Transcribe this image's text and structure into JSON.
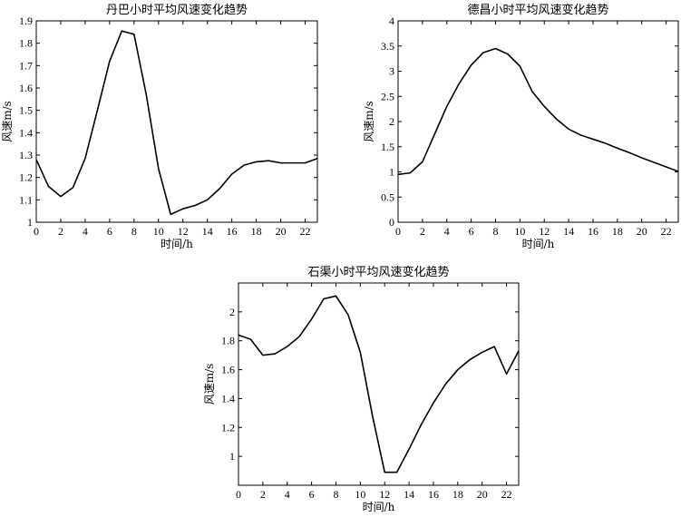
{
  "chart_data": [
    {
      "type": "line",
      "title": "丹巴小时平均风速变化趋势",
      "xlabel": "时间/h",
      "ylabel": "风速m/s",
      "xlim": [
        0,
        23
      ],
      "ylim": [
        1,
        1.9
      ],
      "xticks": [
        "0",
        "2",
        "4",
        "6",
        "8",
        "10",
        "12",
        "14",
        "16",
        "18",
        "20",
        "22"
      ],
      "yticks": [
        "1",
        "1.1",
        "1.2",
        "1.3",
        "1.4",
        "1.5",
        "1.6",
        "1.7",
        "1.8",
        "1.9"
      ],
      "x": [
        0,
        1,
        2,
        3,
        4,
        5,
        6,
        7,
        8,
        9,
        10,
        11,
        12,
        13,
        14,
        15,
        16,
        17,
        18,
        19,
        20,
        21,
        22,
        23
      ],
      "series": [
        {
          "values": [
            1.28,
            1.16,
            1.115,
            1.155,
            1.285,
            1.5,
            1.72,
            1.855,
            1.84,
            1.57,
            1.24,
            1.035,
            1.06,
            1.075,
            1.1,
            1.15,
            1.215,
            1.255,
            1.27,
            1.275,
            1.265,
            1.265,
            1.265,
            1.285
          ]
        }
      ],
      "grid": false
    },
    {
      "type": "line",
      "title": "德昌小时平均风速变化趋势",
      "xlabel": "时间/h",
      "ylabel": "风速m/s",
      "xlim": [
        0,
        23
      ],
      "ylim": [
        0,
        4
      ],
      "xticks": [
        "0",
        "2",
        "4",
        "6",
        "8",
        "10",
        "12",
        "14",
        "16",
        "18",
        "20",
        "22"
      ],
      "yticks": [
        "0",
        "0.5",
        "1",
        "1.5",
        "2",
        "2.5",
        "3",
        "3.5",
        "4"
      ],
      "x": [
        0,
        1,
        2,
        3,
        4,
        5,
        6,
        7,
        8,
        9,
        10,
        11,
        12,
        13,
        14,
        15,
        16,
        17,
        18,
        19,
        20,
        21,
        22,
        23
      ],
      "series": [
        {
          "values": [
            0.95,
            0.98,
            1.2,
            1.75,
            2.3,
            2.75,
            3.12,
            3.37,
            3.45,
            3.34,
            3.1,
            2.6,
            2.3,
            2.05,
            1.85,
            1.73,
            1.65,
            1.57,
            1.47,
            1.38,
            1.28,
            1.19,
            1.1,
            1.01
          ]
        }
      ],
      "grid": false
    },
    {
      "type": "line",
      "title": "石渠小时平均风速变化趋势",
      "xlabel": "时间/h",
      "ylabel": "风速m/s",
      "xlim": [
        0,
        23
      ],
      "ylim": [
        0.8,
        2.2
      ],
      "xticks": [
        "0",
        "2",
        "4",
        "6",
        "8",
        "10",
        "12",
        "14",
        "16",
        "18",
        "20",
        "22"
      ],
      "yticks": [
        "1",
        "1.2",
        "1.4",
        "1.6",
        "1.8",
        "2"
      ],
      "x": [
        0,
        1,
        2,
        3,
        4,
        5,
        6,
        7,
        8,
        9,
        10,
        11,
        12,
        13,
        14,
        15,
        16,
        17,
        18,
        19,
        20,
        21,
        22,
        23
      ],
      "series": [
        {
          "values": [
            1.84,
            1.81,
            1.7,
            1.71,
            1.76,
            1.83,
            1.95,
            2.09,
            2.11,
            1.98,
            1.72,
            1.28,
            0.89,
            0.89,
            1.05,
            1.22,
            1.37,
            1.5,
            1.6,
            1.67,
            1.72,
            1.76,
            1.57,
            1.73
          ]
        }
      ],
      "grid": false
    }
  ]
}
